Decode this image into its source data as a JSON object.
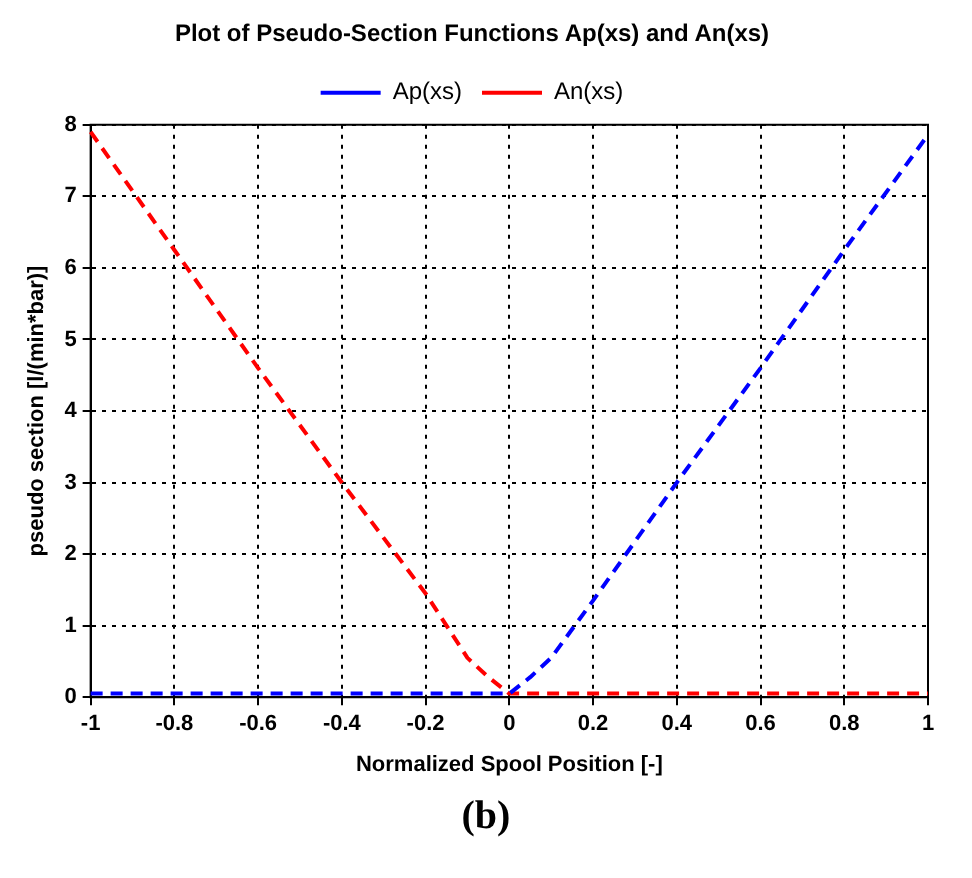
{
  "chart_data": {
    "type": "line",
    "title": "Plot of Pseudo-Section Functions Ap(xs) and An(xs)",
    "xlabel": "Normalized Spool Position [-]",
    "ylabel": "pseudo section [l/(min*bar)]",
    "series": [
      {
        "name": "Ap(xs)",
        "color": "#0000ff",
        "x": [
          -1,
          0,
          0.05,
          0.1,
          0.2,
          0.4,
          0.6,
          0.8,
          1
        ],
        "values": [
          0.05,
          0.05,
          0.28,
          0.55,
          1.35,
          3,
          4.6,
          6.25,
          7.86
        ]
      },
      {
        "name": "An(xs)",
        "color": "#ff0000",
        "x": [
          -1,
          -0.8,
          -0.6,
          -0.4,
          -0.2,
          -0.1,
          -0.05,
          0,
          1
        ],
        "values": [
          7.9,
          6.25,
          4.6,
          3,
          1.45,
          0.55,
          0.28,
          0.05,
          0.05
        ]
      }
    ],
    "xlim": [
      -1,
      1
    ],
    "xticks": [
      -1,
      -0.8,
      -0.6,
      -0.4,
      -0.2,
      0,
      0.2,
      0.4,
      0.6,
      0.8,
      1
    ],
    "ylim": [
      0,
      8
    ],
    "yticks": [
      0,
      1,
      2,
      3,
      4,
      5,
      6,
      7,
      8
    ],
    "grid": true,
    "legend": "top",
    "line_style": "dashed",
    "marker": "none",
    "annotations": [
      "(b)"
    ]
  }
}
